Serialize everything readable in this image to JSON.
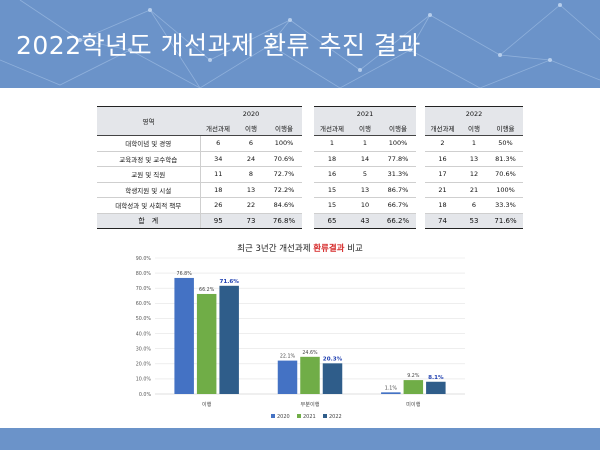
{
  "title": "2022학년도 개선과제 환류 추진 결과",
  "table": {
    "area_header": "영역",
    "years": [
      "2020",
      "2021",
      "2022"
    ],
    "sub_headers": [
      "개선과제",
      "이행",
      "이행율"
    ],
    "rows": [
      {
        "label": "대학이념 및 경영",
        "y2020": [
          "6",
          "6",
          "100%"
        ],
        "y2021": [
          "1",
          "1",
          "100%"
        ],
        "y2022": [
          "2",
          "1",
          "50%"
        ]
      },
      {
        "label": "교육과정 및 교수학습",
        "y2020": [
          "34",
          "24",
          "70.6%"
        ],
        "y2021": [
          "18",
          "14",
          "77.8%"
        ],
        "y2022": [
          "16",
          "13",
          "81.3%"
        ]
      },
      {
        "label": "교원 및 직원",
        "y2020": [
          "11",
          "8",
          "72.7%"
        ],
        "y2021": [
          "16",
          "5",
          "31.3%"
        ],
        "y2022": [
          "17",
          "12",
          "70.6%"
        ]
      },
      {
        "label": "학생지원 및 시설",
        "y2020": [
          "18",
          "13",
          "72.2%"
        ],
        "y2021": [
          "15",
          "13",
          "86.7%"
        ],
        "y2022": [
          "21",
          "21",
          "100%"
        ]
      },
      {
        "label": "대학성과 및 사회적 책무",
        "y2020": [
          "26",
          "22",
          "84.6%"
        ],
        "y2021": [
          "15",
          "10",
          "66.7%"
        ],
        "y2022": [
          "18",
          "6",
          "33.3%"
        ]
      }
    ],
    "total": {
      "label": "합　계",
      "y2020": [
        "95",
        "73",
        "76.8%"
      ],
      "y2021": [
        "65",
        "43",
        "66.2%"
      ],
      "y2022": [
        "74",
        "53",
        "71.6%"
      ]
    }
  },
  "chart_title": {
    "prefix": "최근 3년간 개선과제 ",
    "emphasis": "환류결과",
    "suffix": " 비교"
  },
  "chart_data": {
    "type": "bar",
    "categories": [
      "이행",
      "부분이행",
      "미이행"
    ],
    "series": [
      {
        "name": "2020",
        "color": "#4472c4",
        "values": [
          76.8,
          22.1,
          1.1
        ],
        "labels": [
          "76.8%",
          "22.1%",
          "1.1%"
        ]
      },
      {
        "name": "2021",
        "color": "#70ad47",
        "values": [
          66.2,
          24.6,
          9.2
        ],
        "labels": [
          "66.2%",
          "24.6%",
          "9.2%"
        ]
      },
      {
        "name": "2022",
        "color": "#2f5d8a",
        "values": [
          71.6,
          20.3,
          8.1
        ],
        "labels": [
          "71.6%",
          "20.3%",
          "8.1%"
        ]
      }
    ],
    "ylim": [
      0,
      90
    ],
    "yticks": [
      "0.0%",
      "10.0%",
      "20.0%",
      "30.0%",
      "40.0%",
      "50.0%",
      "60.0%",
      "70.0%",
      "80.0%",
      "90.0%"
    ],
    "grid": true,
    "legend": "bottom",
    "emphasized_series": "2022"
  }
}
